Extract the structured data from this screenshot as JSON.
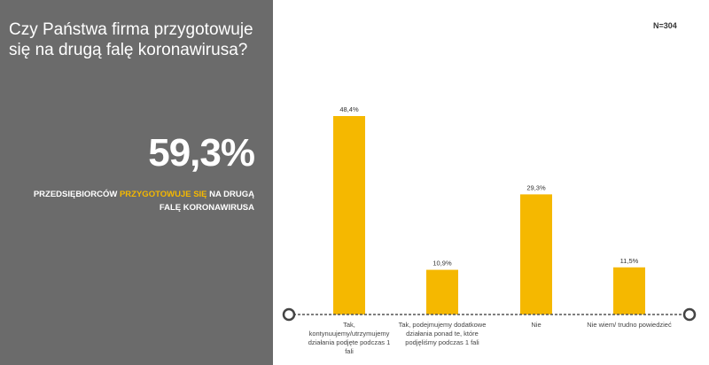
{
  "question": "Czy Państwa firma przygotowuje się na drugą falę koronawirusa?",
  "headline": {
    "value": "59,3%",
    "caption_before": "PRZEDSIĘBIORCÓW ",
    "caption_highlight": "PRZYGOTOWUJE SIĘ",
    "caption_after": " NA DRUGĄ FALĘ KORONAWIRUSA"
  },
  "sample_size": "N=304",
  "colors": {
    "panel": "#6b6b6b",
    "bar": "#f5b800",
    "highlight": "#f5b800"
  },
  "chart_data": {
    "type": "bar",
    "categories": [
      "Tak, kontynuujemy/utrzymujemy działania podjęte podczas 1 fali",
      "Tak, podejmujemy dodatkowe działania ponad te, które podjęliśmy podczas 1 fali",
      "Nie",
      "Nie wiem/ trudno powiedzieć"
    ],
    "values": [
      48.4,
      10.9,
      29.3,
      11.5
    ],
    "value_labels": [
      "48,4%",
      "10,9%",
      "29,3%",
      "11,5%"
    ],
    "ylim": [
      0,
      50
    ],
    "grid": false,
    "legend": "none"
  }
}
